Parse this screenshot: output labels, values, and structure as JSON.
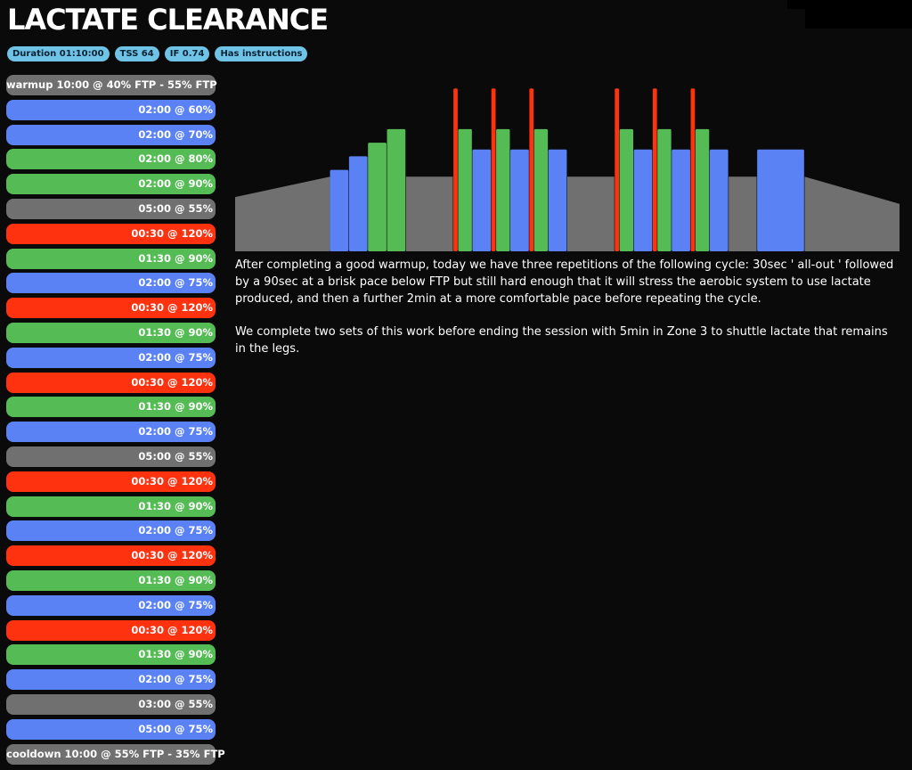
{
  "workout": {
    "title": "LACTATE CLEARANCE",
    "badges": [
      "Duration 01:10:00",
      "TSS 64",
      "IF 0.74",
      "Has instructions"
    ]
  },
  "colors": {
    "gray": "#707070",
    "blue": "#5a82f5",
    "green": "#55bb55",
    "red": "#ff3210",
    "badge": "#6fc3e6",
    "background": "#0a0a0a"
  },
  "steps": [
    {
      "label": "warmup 10:00 @ 40% FTP - 55% FTP",
      "zone": "gray"
    },
    {
      "label": "02:00 @ 60%",
      "zone": "blue"
    },
    {
      "label": "02:00 @ 70%",
      "zone": "blue"
    },
    {
      "label": "02:00 @ 80%",
      "zone": "green"
    },
    {
      "label": "02:00 @ 90%",
      "zone": "green"
    },
    {
      "label": "05:00 @ 55%",
      "zone": "gray"
    },
    {
      "label": "00:30 @ 120%",
      "zone": "red"
    },
    {
      "label": "01:30 @ 90%",
      "zone": "green"
    },
    {
      "label": "02:00 @ 75%",
      "zone": "blue"
    },
    {
      "label": "00:30 @ 120%",
      "zone": "red"
    },
    {
      "label": "01:30 @ 90%",
      "zone": "green"
    },
    {
      "label": "02:00 @ 75%",
      "zone": "blue"
    },
    {
      "label": "00:30 @ 120%",
      "zone": "red"
    },
    {
      "label": "01:30 @ 90%",
      "zone": "green"
    },
    {
      "label": "02:00 @ 75%",
      "zone": "blue"
    },
    {
      "label": "05:00 @ 55%",
      "zone": "gray"
    },
    {
      "label": "00:30 @ 120%",
      "zone": "red"
    },
    {
      "label": "01:30 @ 90%",
      "zone": "green"
    },
    {
      "label": "02:00 @ 75%",
      "zone": "blue"
    },
    {
      "label": "00:30 @ 120%",
      "zone": "red"
    },
    {
      "label": "01:30 @ 90%",
      "zone": "green"
    },
    {
      "label": "02:00 @ 75%",
      "zone": "blue"
    },
    {
      "label": "00:30 @ 120%",
      "zone": "red"
    },
    {
      "label": "01:30 @ 90%",
      "zone": "green"
    },
    {
      "label": "02:00 @ 75%",
      "zone": "blue"
    },
    {
      "label": "03:00 @ 55%",
      "zone": "gray"
    },
    {
      "label": "05:00 @ 75%",
      "zone": "blue"
    },
    {
      "label": "cooldown 10:00 @ 55% FTP - 35% FTP",
      "zone": "gray"
    }
  ],
  "chart_data": {
    "type": "area",
    "x_unit": "minutes",
    "y_unit": "% FTP",
    "ylim": [
      0,
      130
    ],
    "segments": [
      {
        "start": 0,
        "duration": 10,
        "from": 40,
        "to": 55,
        "zone": "gray"
      },
      {
        "start": 10,
        "duration": 2,
        "from": 60,
        "to": 60,
        "zone": "blue"
      },
      {
        "start": 12,
        "duration": 2,
        "from": 70,
        "to": 70,
        "zone": "blue"
      },
      {
        "start": 14,
        "duration": 2,
        "from": 80,
        "to": 80,
        "zone": "green"
      },
      {
        "start": 16,
        "duration": 2,
        "from": 90,
        "to": 90,
        "zone": "green"
      },
      {
        "start": 18,
        "duration": 5,
        "from": 55,
        "to": 55,
        "zone": "gray"
      },
      {
        "start": 23,
        "duration": 0.5,
        "from": 120,
        "to": 120,
        "zone": "red"
      },
      {
        "start": 23.5,
        "duration": 1.5,
        "from": 90,
        "to": 90,
        "zone": "green"
      },
      {
        "start": 25,
        "duration": 2,
        "from": 75,
        "to": 75,
        "zone": "blue"
      },
      {
        "start": 27,
        "duration": 0.5,
        "from": 120,
        "to": 120,
        "zone": "red"
      },
      {
        "start": 27.5,
        "duration": 1.5,
        "from": 90,
        "to": 90,
        "zone": "green"
      },
      {
        "start": 29,
        "duration": 2,
        "from": 75,
        "to": 75,
        "zone": "blue"
      },
      {
        "start": 31,
        "duration": 0.5,
        "from": 120,
        "to": 120,
        "zone": "red"
      },
      {
        "start": 31.5,
        "duration": 1.5,
        "from": 90,
        "to": 90,
        "zone": "green"
      },
      {
        "start": 33,
        "duration": 2,
        "from": 75,
        "to": 75,
        "zone": "blue"
      },
      {
        "start": 35,
        "duration": 5,
        "from": 55,
        "to": 55,
        "zone": "gray"
      },
      {
        "start": 40,
        "duration": 0.5,
        "from": 120,
        "to": 120,
        "zone": "red"
      },
      {
        "start": 40.5,
        "duration": 1.5,
        "from": 90,
        "to": 90,
        "zone": "green"
      },
      {
        "start": 42,
        "duration": 2,
        "from": 75,
        "to": 75,
        "zone": "blue"
      },
      {
        "start": 44,
        "duration": 0.5,
        "from": 120,
        "to": 120,
        "zone": "red"
      },
      {
        "start": 44.5,
        "duration": 1.5,
        "from": 90,
        "to": 90,
        "zone": "green"
      },
      {
        "start": 46,
        "duration": 2,
        "from": 75,
        "to": 75,
        "zone": "blue"
      },
      {
        "start": 48,
        "duration": 0.5,
        "from": 120,
        "to": 120,
        "zone": "red"
      },
      {
        "start": 48.5,
        "duration": 1.5,
        "from": 90,
        "to": 90,
        "zone": "green"
      },
      {
        "start": 50,
        "duration": 2,
        "from": 75,
        "to": 75,
        "zone": "blue"
      },
      {
        "start": 52,
        "duration": 3,
        "from": 55,
        "to": 55,
        "zone": "gray"
      },
      {
        "start": 55,
        "duration": 5,
        "from": 75,
        "to": 75,
        "zone": "blue"
      },
      {
        "start": 60,
        "duration": 10,
        "from": 55,
        "to": 35,
        "zone": "gray"
      }
    ]
  },
  "description": [
    "After completing a good warmup, today we have three repetitions of the following cycle: 30sec ' all-out ' followed by a 90sec at a brisk pace below FTP but still hard enough that it will stress the aerobic system to use lactate produced, and then a further 2min at a more comfortable pace before repeating the cycle.",
    "We complete two sets of this work before ending the session with 5min in Zone 3 to shuttle lactate that remains in the legs."
  ]
}
